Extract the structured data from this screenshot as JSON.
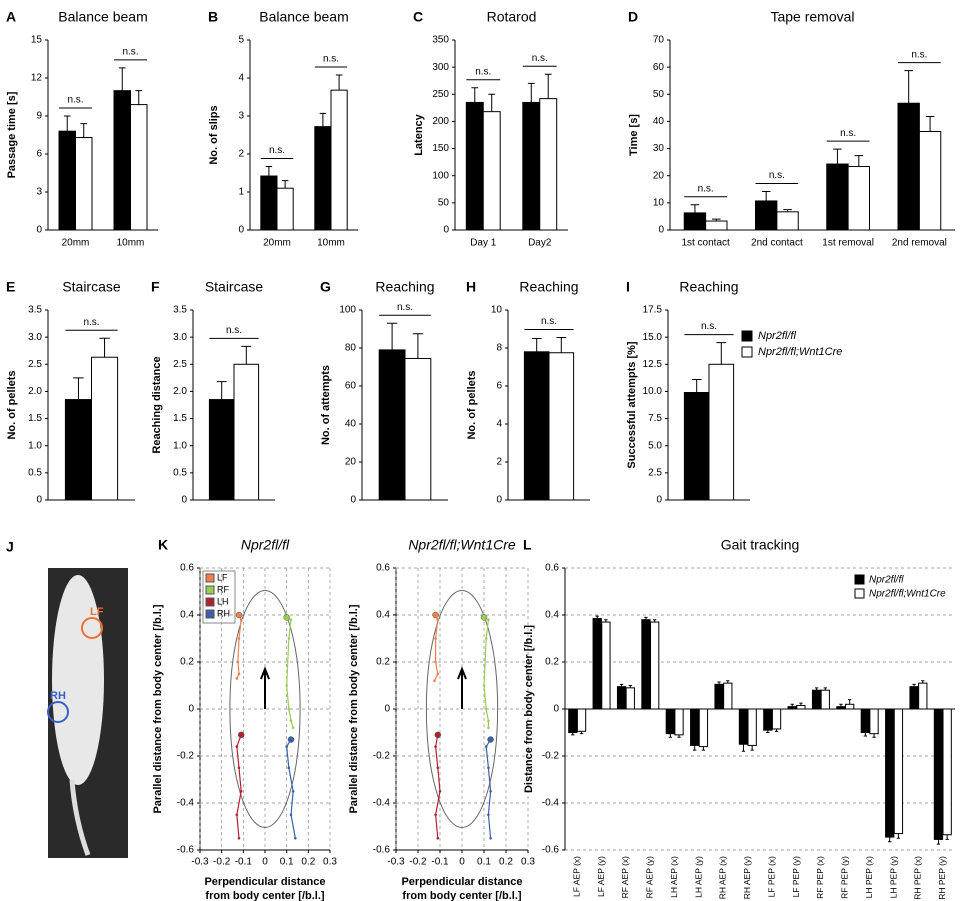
{
  "legend": {
    "items": [
      {
        "name": "Npr2fl/fl",
        "color": "#000000"
      },
      {
        "name": "Npr2fl/fl;Wnt1Cre",
        "color": "#ffffff"
      }
    ]
  },
  "photo": {
    "panel": "J",
    "labels": [
      "LF",
      "RH"
    ]
  },
  "chart_data": [
    {
      "type": "bar",
      "panel": "A",
      "title": "Balance beam",
      "ylabel": "Passage time [s]",
      "categories": [
        "20mm",
        "10mm"
      ],
      "series": [
        {
          "color": "#000000",
          "values": [
            7.8,
            11.0
          ],
          "errors": [
            1.2,
            1.8
          ]
        },
        {
          "color": "#ffffff",
          "values": [
            7.3,
            9.9
          ],
          "errors": [
            1.1,
            1.1
          ]
        }
      ],
      "annotations": [
        "n.s.",
        "n.s."
      ],
      "ylim": [
        0,
        15
      ],
      "yticks": [
        0,
        3,
        6,
        9,
        12,
        15
      ]
    },
    {
      "type": "bar",
      "panel": "B",
      "title": "Balance beam",
      "ylabel": "No. of slips",
      "categories": [
        "20mm",
        "10mm"
      ],
      "series": [
        {
          "color": "#000000",
          "values": [
            1.42,
            2.72
          ],
          "errors": [
            0.25,
            0.35
          ]
        },
        {
          "color": "#ffffff",
          "values": [
            1.1,
            3.68
          ],
          "errors": [
            0.2,
            0.4
          ]
        }
      ],
      "annotations": [
        "n.s.",
        "n.s."
      ],
      "ylim": [
        0,
        5
      ],
      "yticks": [
        0,
        1,
        2,
        3,
        4,
        5
      ]
    },
    {
      "type": "bar",
      "panel": "C",
      "title": "Rotarod",
      "ylabel": "Latency",
      "categories": [
        "Day 1",
        "Day2"
      ],
      "series": [
        {
          "color": "#000000",
          "values": [
            235,
            235
          ],
          "errors": [
            27,
            35
          ]
        },
        {
          "color": "#ffffff",
          "values": [
            218,
            242
          ],
          "errors": [
            32,
            45
          ]
        }
      ],
      "annotations": [
        "n.s.",
        "n.s."
      ],
      "ylim": [
        0,
        350
      ],
      "yticks": [
        0,
        50,
        100,
        150,
        200,
        250,
        300,
        350
      ]
    },
    {
      "type": "bar",
      "panel": "D",
      "title": "Tape removal",
      "ylabel": "Time [s]",
      "categories": [
        "1st contact",
        "2nd contact",
        "1st removal",
        "2nd removal"
      ],
      "series": [
        {
          "color": "#000000",
          "values": [
            6.3,
            10.7,
            24.3,
            46.7
          ],
          "errors": [
            3,
            3.5,
            5.5,
            12
          ]
        },
        {
          "color": "#ffffff",
          "values": [
            3.3,
            6.7,
            23.4,
            36.3
          ],
          "errors": [
            0.7,
            0.8,
            4,
            5.5
          ]
        }
      ],
      "annotations": [
        "n.s.",
        "n.s.",
        "n.s.",
        "n.s."
      ],
      "ylim": [
        0,
        70
      ],
      "yticks": [
        0,
        10,
        20,
        30,
        40,
        50,
        60,
        70
      ]
    },
    {
      "type": "bar",
      "panel": "E",
      "title": "Staircase",
      "ylabel": "No. of pellets",
      "series": [
        {
          "color": "#000000",
          "values": [
            1.85
          ],
          "errors": [
            0.4
          ]
        },
        {
          "color": "#ffffff",
          "values": [
            2.63
          ],
          "errors": [
            0.35
          ]
        }
      ],
      "annotations": [
        "n.s."
      ],
      "ylim": [
        0,
        3.5
      ],
      "yticks": [
        0,
        0.5,
        {
          "value": 1,
          "label": "1.0"
        },
        1.5,
        {
          "value": 2,
          "label": "2.0"
        },
        2.5,
        {
          "value": 3,
          "label": "3.0"
        },
        3.5
      ]
    },
    {
      "type": "bar",
      "panel": "F",
      "title": "Staircase",
      "ylabel": "Reaching distance",
      "series": [
        {
          "color": "#000000",
          "values": [
            1.85
          ],
          "errors": [
            0.33
          ]
        },
        {
          "color": "#ffffff",
          "values": [
            2.5
          ],
          "errors": [
            0.33
          ]
        }
      ],
      "annotations": [
        "n.s."
      ],
      "ylim": [
        0,
        3.5
      ],
      "yticks": [
        0,
        0.5,
        {
          "value": 1,
          "label": "1.0"
        },
        1.5,
        {
          "value": 2,
          "label": "2.0"
        },
        2.5,
        {
          "value": 3,
          "label": "3.0"
        },
        3.5
      ]
    },
    {
      "type": "bar",
      "panel": "G",
      "title": "Reaching",
      "ylabel": "No. of attempts",
      "series": [
        {
          "color": "#000000",
          "values": [
            79
          ],
          "errors": [
            14
          ]
        },
        {
          "color": "#ffffff",
          "values": [
            74.5
          ],
          "errors": [
            13
          ]
        }
      ],
      "annotations": [
        "n.s."
      ],
      "ylim": [
        0,
        100
      ],
      "yticks": [
        0,
        20,
        40,
        60,
        80,
        100
      ]
    },
    {
      "type": "bar",
      "panel": "H",
      "title": "Reaching",
      "ylabel": "No. of pellets",
      "series": [
        {
          "color": "#000000",
          "values": [
            7.8
          ],
          "errors": [
            0.7
          ]
        },
        {
          "color": "#ffffff",
          "values": [
            7.75
          ],
          "errors": [
            0.8
          ]
        }
      ],
      "annotations": [
        "n.s."
      ],
      "ylim": [
        0,
        10
      ],
      "yticks": [
        0,
        2,
        4,
        6,
        8,
        10
      ]
    },
    {
      "type": "bar",
      "panel": "I",
      "title": "Reaching",
      "ylabel": "Successful attempts [%]",
      "series": [
        {
          "color": "#000000",
          "values": [
            9.9
          ],
          "errors": [
            1.2
          ]
        },
        {
          "color": "#ffffff",
          "values": [
            12.5
          ],
          "errors": [
            2
          ]
        }
      ],
      "annotations": [
        "n.s."
      ],
      "ylim": [
        0,
        17.5
      ],
      "yticks": [
        0,
        2.5,
        {
          "value": 5,
          "label": "5.0"
        },
        7.5,
        {
          "value": 10,
          "label": "10.0"
        },
        12.5,
        {
          "value": 15,
          "label": "15.0"
        },
        17.5
      ]
    },
    {
      "type": "trace",
      "panel": "K",
      "title": "Npr2fl/fl",
      "ylabel": "Parallel distance from body center [/b.l.]",
      "xlabel": [
        "Perpendicular distance",
        "from body center [/b.l.]"
      ],
      "series": [
        {
          "name": "LF",
          "color": "#f07f50",
          "x": [
            -0.12,
            -0.11,
            -0.12,
            -0.125,
            -0.12,
            -0.13
          ],
          "y": [
            0.4,
            0.38,
            0.3,
            0.2,
            0.15,
            0.13
          ]
        },
        {
          "name": "RF",
          "color": "#9ccc50",
          "x": [
            0.1,
            0.12,
            0.11,
            0.1,
            0.11,
            0.12,
            0.13
          ],
          "y": [
            0.39,
            0.38,
            0.3,
            0.1,
            0,
            -0.05,
            -0.08
          ]
        },
        {
          "name": "LH",
          "color": "#b22030",
          "x": [
            -0.11,
            -0.13,
            -0.12,
            -0.11,
            -0.13,
            -0.12
          ],
          "y": [
            -0.11,
            -0.16,
            -0.25,
            -0.35,
            -0.45,
            -0.55
          ]
        },
        {
          "name": "RH",
          "color": "#3a60a8",
          "x": [
            0.12,
            0.1,
            0.11,
            0.13,
            0.12,
            0.14
          ],
          "y": [
            -0.13,
            -0.16,
            -0.25,
            -0.35,
            -0.45,
            -0.55
          ]
        }
      ],
      "legend": "upper left",
      "grid": true,
      "xlim": [
        -0.3,
        0.3
      ],
      "xticks": [
        -0.3,
        -0.2,
        -0.1,
        0,
        0.1,
        0.2,
        0.3
      ],
      "ylim": [
        -0.6,
        0.6
      ],
      "yticks": [
        -0.6,
        -0.4,
        -0.2,
        0,
        0.2,
        0.4,
        0.6
      ]
    },
    {
      "type": "trace",
      "title": "Npr2fl/fl;Wnt1Cre",
      "ylabel": "Parallel distance from body center [/b.l.]",
      "xlabel": [
        "Perpendicular distance",
        "from body center [/b.l.]"
      ],
      "series": [
        {
          "color": "#f07f50",
          "x": [
            -0.12,
            -0.11,
            -0.12,
            -0.12,
            -0.11,
            -0.125
          ],
          "y": [
            0.4,
            0.38,
            0.3,
            0.2,
            0.15,
            0.12
          ]
        },
        {
          "color": "#9ccc50",
          "x": [
            0.1,
            0.12,
            0.11,
            0.1,
            0.11,
            0.12,
            0.12
          ],
          "y": [
            0.39,
            0.38,
            0.3,
            0.1,
            0,
            -0.05,
            -0.08
          ]
        },
        {
          "color": "#b22030",
          "x": [
            -0.11,
            -0.12,
            -0.11,
            -0.1,
            -0.12,
            -0.11
          ],
          "y": [
            -0.11,
            -0.16,
            -0.25,
            -0.35,
            -0.45,
            -0.55
          ]
        },
        {
          "color": "#3a60a8",
          "x": [
            0.13,
            0.11,
            0.12,
            0.13,
            0.12,
            0.13
          ],
          "y": [
            -0.13,
            -0.16,
            -0.25,
            -0.35,
            -0.45,
            -0.55
          ]
        }
      ],
      "grid": true,
      "xlim": [
        -0.3,
        0.3
      ],
      "xticks": [
        -0.3,
        -0.2,
        -0.1,
        0,
        0.1,
        0.2,
        0.3
      ],
      "ylim": [
        -0.6,
        0.6
      ],
      "yticks": [
        -0.6,
        -0.4,
        -0.2,
        0,
        0.2,
        0.4,
        0.6
      ]
    },
    {
      "type": "bar",
      "panel": "L",
      "title": "Gait tracking",
      "ylabel": "Distance from body center [/b.l.]",
      "categories": [
        "LF AEP (x)",
        "LF AEP (y)",
        "RF AEP (x)",
        "RF AEP (y)",
        "LH AEP (x)",
        "LH AEP (y)",
        "RH AEP (x)",
        "RH AEP (y)",
        "LF PEP (x)",
        "LF PEP (y)",
        "RF PEP (x)",
        "RF PEP (y)",
        "LH PEP (x)",
        "LH PEP (y)",
        "RH PEP (x)",
        "RH PEP (y)"
      ],
      "series": [
        {
          "name": "Npr2fl/fl",
          "color": "#000000",
          "values": [
            -0.1,
            0.385,
            0.095,
            0.38,
            -0.105,
            -0.155,
            0.105,
            -0.15,
            -0.09,
            0.01,
            0.08,
            0.01,
            -0.1,
            -0.545,
            0.095,
            -0.555
          ],
          "errors": [
            0.01,
            0.01,
            0.01,
            0.01,
            0.015,
            0.02,
            0.01,
            0.03,
            0.01,
            0.01,
            0.01,
            0.01,
            0.015,
            0.02,
            0.01,
            0.02
          ]
        },
        {
          "name": "Npr2fl/fl;Wnt1Cre",
          "color": "#ffffff",
          "values": [
            -0.095,
            0.37,
            0.09,
            0.37,
            -0.11,
            -0.16,
            0.11,
            -0.155,
            -0.085,
            0.015,
            0.08,
            0.02,
            -0.105,
            -0.53,
            0.11,
            -0.535
          ],
          "errors": [
            0.01,
            0.01,
            0.01,
            0.01,
            0.01,
            0.015,
            0.01,
            0.02,
            0.01,
            0.01,
            0.01,
            0.02,
            0.015,
            0.02,
            0.01,
            0.02
          ]
        }
      ],
      "legend": "upper right",
      "grid": true,
      "ylim": [
        -0.6,
        0.6
      ],
      "yticks": [
        -0.6,
        -0.4,
        -0.2,
        0,
        0.2,
        0.4,
        0.6
      ]
    }
  ]
}
